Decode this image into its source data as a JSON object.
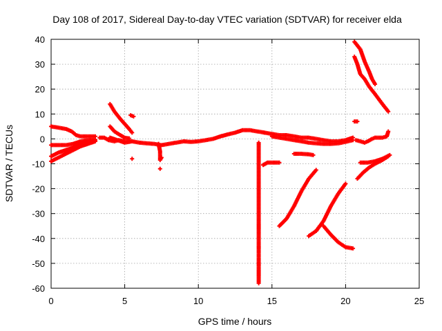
{
  "chart_data": {
    "type": "scatter",
    "title": "Day 108 of 2017, Sidereal Day-to-day VTEC variation (SDTVAR) for receiver elda",
    "xlabel": "GPS time / hours",
    "ylabel": "SDTVAR / TECUs",
    "xlim": [
      0,
      25
    ],
    "ylim": [
      -60,
      40
    ],
    "xticks": [
      0,
      5,
      10,
      15,
      20,
      25
    ],
    "yticks": [
      -60,
      -50,
      -40,
      -30,
      -20,
      -10,
      0,
      10,
      20,
      30,
      40
    ],
    "grid": true,
    "marker": "plus",
    "color": "#ff0000",
    "segments": [
      {
        "name": "early-high",
        "points": [
          [
            0,
            5
          ],
          [
            0.5,
            4.5
          ],
          [
            1,
            4
          ],
          [
            1.4,
            3
          ],
          [
            1.7,
            1.5
          ],
          [
            2,
            1
          ],
          [
            2.5,
            1
          ],
          [
            3,
            1
          ]
        ]
      },
      {
        "name": "early-mid",
        "points": [
          [
            0,
            -2.5
          ],
          [
            0.5,
            -2.5
          ],
          [
            1,
            -2.5
          ],
          [
            1.5,
            -2
          ],
          [
            2,
            -1
          ],
          [
            2.5,
            -0.5
          ],
          [
            3,
            -0.3
          ]
        ]
      },
      {
        "name": "early-low",
        "points": [
          [
            0,
            -9
          ],
          [
            0.5,
            -7.5
          ],
          [
            1,
            -6
          ],
          [
            1.5,
            -4.5
          ],
          [
            2,
            -3
          ],
          [
            2.5,
            -2
          ],
          [
            3,
            -1
          ]
        ]
      },
      {
        "name": "early-low-2",
        "points": [
          [
            0,
            -7
          ],
          [
            0.5,
            -5.5
          ],
          [
            1,
            -4.5
          ],
          [
            1.5,
            -3.5
          ],
          [
            2,
            -2
          ],
          [
            2.5,
            -1.2
          ],
          [
            3,
            -0.8
          ]
        ]
      },
      {
        "name": "main-1",
        "points": [
          [
            3.3,
            0.5
          ],
          [
            3.6,
            0.5
          ],
          [
            3.9,
            -0.5
          ],
          [
            4.3,
            -1
          ],
          [
            4.6,
            -0.5
          ],
          [
            5,
            -1
          ],
          [
            5.5,
            -1
          ],
          [
            6,
            -1.5
          ],
          [
            6.5,
            -1.8
          ],
          [
            7,
            -2
          ],
          [
            7.5,
            -2.5
          ],
          [
            8,
            -2
          ],
          [
            8.5,
            -1.5
          ],
          [
            9,
            -1
          ],
          [
            9.5,
            -1.2
          ],
          [
            10,
            -1
          ],
          [
            10.5,
            -0.5
          ],
          [
            11,
            0
          ],
          [
            11.5,
            1
          ],
          [
            12,
            1.8
          ],
          [
            12.5,
            2.5
          ],
          [
            13,
            3.5
          ],
          [
            13.5,
            3.5
          ],
          [
            14,
            3
          ],
          [
            14.5,
            2.5
          ]
        ]
      },
      {
        "name": "arc-1",
        "points": [
          [
            4,
            14
          ],
          [
            4.3,
            11
          ],
          [
            4.7,
            8
          ],
          [
            5,
            6
          ],
          [
            5.3,
            4
          ],
          [
            5.5,
            2.5
          ]
        ]
      },
      {
        "name": "arc-2",
        "points": [
          [
            4,
            5
          ],
          [
            4.3,
            3
          ],
          [
            4.7,
            1.5
          ],
          [
            5,
            0.5
          ],
          [
            5.3,
            0.2
          ]
        ]
      },
      {
        "name": "arc-3",
        "points": [
          [
            4,
            0.5
          ],
          [
            4.5,
            -0.5
          ],
          [
            5,
            -1.5
          ],
          [
            5.5,
            -1
          ]
        ]
      },
      {
        "name": "dot-a",
        "points": [
          [
            5.4,
            9.5
          ],
          [
            5.6,
            9
          ]
        ]
      },
      {
        "name": "dot-b",
        "points": [
          [
            5.5,
            -8
          ]
        ]
      },
      {
        "name": "dip-7",
        "points": [
          [
            7.3,
            -2
          ],
          [
            7.4,
            -5
          ],
          [
            7.4,
            -8.5
          ],
          [
            7.5,
            -7.5
          ]
        ]
      },
      {
        "name": "dot-c",
        "points": [
          [
            7.4,
            -12
          ]
        ]
      },
      {
        "name": "outlier-14",
        "points": [
          [
            14.1,
            -1.5
          ],
          [
            14.1,
            -32.5
          ],
          [
            14.1,
            -39
          ],
          [
            14.1,
            -52
          ],
          [
            14.1,
            -58
          ]
        ]
      },
      {
        "name": "mid-afternoon",
        "points": [
          [
            14.5,
            2.5
          ],
          [
            15,
            2
          ],
          [
            15.5,
            1.5
          ],
          [
            16,
            1.5
          ],
          [
            16.5,
            1
          ],
          [
            17,
            0.5
          ],
          [
            17.5,
            0.5
          ],
          [
            18,
            0
          ],
          [
            18.5,
            -0.5
          ],
          [
            19,
            -1
          ],
          [
            19.5,
            -1
          ],
          [
            20,
            -0.5
          ],
          [
            20.5,
            0.5
          ]
        ]
      },
      {
        "name": "mid-afternoon-2",
        "points": [
          [
            15,
            1
          ],
          [
            15.5,
            0.5
          ],
          [
            16,
            0
          ],
          [
            16.5,
            -0.5
          ],
          [
            17,
            -1
          ],
          [
            17.5,
            -1.5
          ],
          [
            18,
            -1.8
          ],
          [
            18.5,
            -2
          ],
          [
            19,
            -2
          ],
          [
            19.5,
            -1.8
          ],
          [
            20,
            -1.2
          ],
          [
            20.5,
            -0.5
          ]
        ]
      },
      {
        "name": "seg-15",
        "points": [
          [
            14.4,
            -10.5
          ],
          [
            14.7,
            -9.5
          ],
          [
            15,
            -9.5
          ],
          [
            15.3,
            -9.5
          ],
          [
            15.5,
            -9.5
          ]
        ]
      },
      {
        "name": "seg-17",
        "points": [
          [
            16.5,
            -6
          ],
          [
            17,
            -6
          ],
          [
            17.5,
            -6.2
          ],
          [
            17.8,
            -6.5
          ]
        ]
      },
      {
        "name": "rise-1",
        "points": [
          [
            15.5,
            -35
          ],
          [
            16,
            -32
          ],
          [
            16.5,
            -27
          ],
          [
            17,
            -21
          ],
          [
            17.5,
            -16
          ],
          [
            18,
            -12.5
          ]
        ]
      },
      {
        "name": "rise-2",
        "points": [
          [
            17.5,
            -39
          ],
          [
            18,
            -37
          ],
          [
            18.5,
            -33
          ],
          [
            19,
            -27
          ],
          [
            19.5,
            -22
          ],
          [
            20,
            -18
          ]
        ]
      },
      {
        "name": "fall-1",
        "points": [
          [
            18.5,
            -35
          ],
          [
            19,
            -38.5
          ],
          [
            19.5,
            -41.5
          ],
          [
            20,
            -43.5
          ],
          [
            20.5,
            -44
          ]
        ]
      },
      {
        "name": "spike-20-7",
        "points": [
          [
            20.6,
            7
          ],
          [
            20.8,
            7
          ]
        ]
      },
      {
        "name": "high-1",
        "points": [
          [
            20.6,
            39
          ],
          [
            21,
            36
          ],
          [
            21.3,
            31
          ],
          [
            21.6,
            27
          ],
          [
            21.8,
            24
          ],
          [
            22,
            22
          ]
        ]
      },
      {
        "name": "high-2",
        "points": [
          [
            20.6,
            33
          ],
          [
            20.8,
            30
          ],
          [
            21,
            26
          ],
          [
            21.3,
            24
          ],
          [
            21.6,
            21
          ],
          [
            22,
            18
          ],
          [
            22.5,
            14
          ],
          [
            22.9,
            11
          ]
        ]
      },
      {
        "name": "late-1",
        "points": [
          [
            20.7,
            -0.5
          ],
          [
            21,
            -1
          ],
          [
            21.3,
            -1.5
          ],
          [
            21.5,
            -1
          ],
          [
            21.8,
            0
          ],
          [
            22,
            0.5
          ],
          [
            22.5,
            0.5
          ],
          [
            22.8,
            1
          ],
          [
            22.9,
            3
          ]
        ]
      },
      {
        "name": "late-2",
        "points": [
          [
            21,
            -9.5
          ],
          [
            21.5,
            -9.5
          ],
          [
            22,
            -9
          ],
          [
            22.5,
            -8
          ],
          [
            23,
            -6.5
          ]
        ]
      },
      {
        "name": "late-3",
        "points": [
          [
            20.8,
            -16
          ],
          [
            21.2,
            -13.5
          ],
          [
            21.6,
            -11.5
          ],
          [
            22,
            -10
          ],
          [
            22.5,
            -8.5
          ],
          [
            22.9,
            -7
          ]
        ]
      }
    ]
  }
}
